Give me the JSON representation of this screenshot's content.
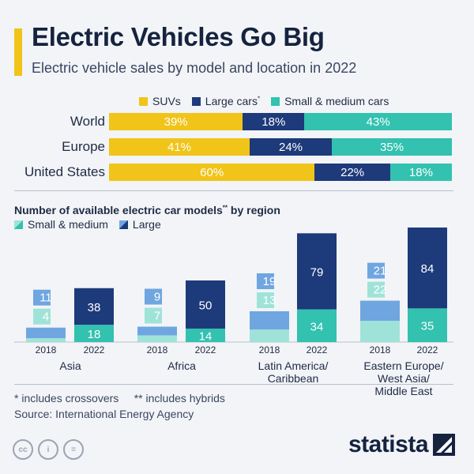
{
  "header": {
    "title": "Electric Vehicles Go Big",
    "subtitle": "Electric vehicle sales by model and location in 2022"
  },
  "colors": {
    "suv": "#f0c419",
    "large": "#1d3a7a",
    "small_medium": "#33c1b0",
    "large_2018": "#6fa6e0",
    "small_medium_2018": "#9fe3d8",
    "accent": "#f0c419",
    "background": "#f2f4f7"
  },
  "chart_data": [
    {
      "type": "bar",
      "orientation": "horizontal",
      "stacked": true,
      "percent": true,
      "categories": [
        "World",
        "Europe",
        "United States"
      ],
      "series": [
        {
          "name": "SUVs",
          "sup": "",
          "values": [
            39,
            41,
            60
          ],
          "labels": [
            "39%",
            "41%",
            "60%"
          ],
          "color": "#f0c419"
        },
        {
          "name": "Large cars",
          "sup": "*",
          "values": [
            18,
            24,
            22
          ],
          "labels": [
            "18%",
            "24%",
            "22%"
          ],
          "color": "#1d3a7a"
        },
        {
          "name": "Small & medium cars",
          "sup": "",
          "values": [
            43,
            35,
            18
          ],
          "labels": [
            "43%",
            "35%",
            "18%"
          ],
          "color": "#33c1b0"
        }
      ],
      "legend": "top"
    },
    {
      "type": "bar",
      "stacked": true,
      "title": "Number of available electric car models",
      "title_sup": "**",
      "title_suffix": "by region",
      "legend": "top-left",
      "legend_items": [
        "Small & medium",
        "Large"
      ],
      "groups": [
        {
          "name": "Asia",
          "years": [
            "2018",
            "2022"
          ],
          "small_medium": [
            4,
            18
          ],
          "large": [
            11,
            38
          ]
        },
        {
          "name": "Africa",
          "years": [
            "2018",
            "2022"
          ],
          "small_medium": [
            7,
            14
          ],
          "large": [
            9,
            50
          ]
        },
        {
          "name": "Latin America/\nCaribbean",
          "years": [
            "2018",
            "2022"
          ],
          "small_medium": [
            13,
            34
          ],
          "large": [
            19,
            79
          ]
        },
        {
          "name": "Eastern Europe/\nWest Asia/\nMiddle East",
          "years": [
            "2018",
            "2022"
          ],
          "small_medium": [
            22,
            35
          ],
          "large": [
            21,
            84
          ]
        }
      ]
    }
  ],
  "footnotes": {
    "crossovers": "* includes crossovers",
    "hybrids": "** includes hybrids",
    "source": "Source: International Energy Agency"
  },
  "license_icons": [
    "cc-icon",
    "person-icon",
    "equals-icon"
  ],
  "license_glyphs": [
    "cc",
    "i",
    "="
  ],
  "brand": "statista"
}
